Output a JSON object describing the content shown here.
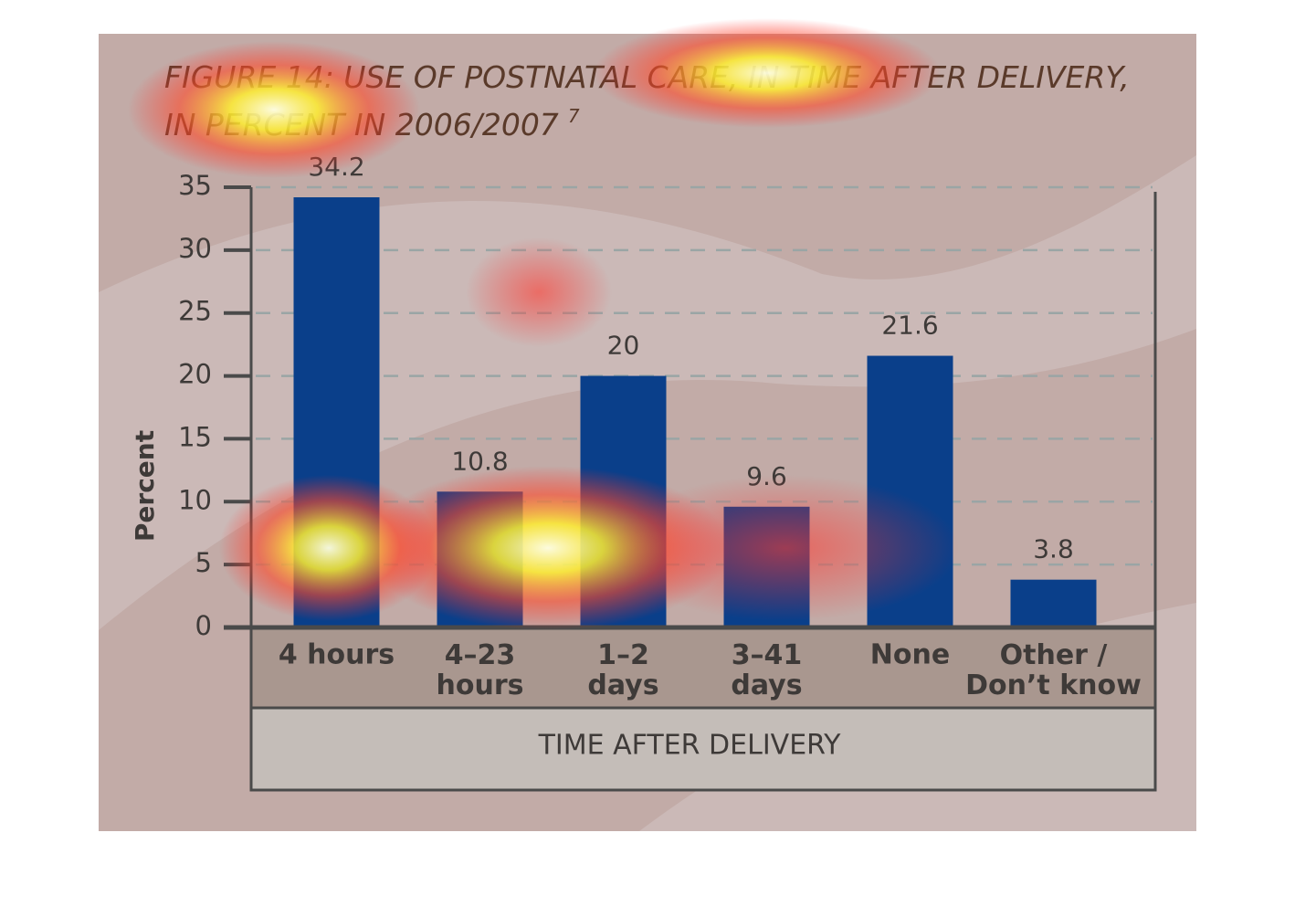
{
  "chart_data": {
    "type": "bar",
    "title": "FIGURE 14: USE OF POSTNATAL CARE, IN TIME AFTER DELIVERY,\nIN PERCENT IN 2006/2007",
    "title_note": "7",
    "x_label": "TIME AFTER DELIVERY",
    "y_label": "Percent",
    "categories": [
      "4 hours",
      "4–23\nhours",
      "1–2\ndays",
      "3–41\ndays",
      "None",
      "Other /\nDon’t know"
    ],
    "values": [
      34.2,
      10.8,
      20,
      9.6,
      21.6,
      3.8
    ],
    "color": "#0a3f8a",
    "ylim": [
      0,
      35
    ],
    "yticks": [
      0,
      5,
      10,
      15,
      20,
      25,
      30,
      35
    ],
    "grid": true
  }
}
